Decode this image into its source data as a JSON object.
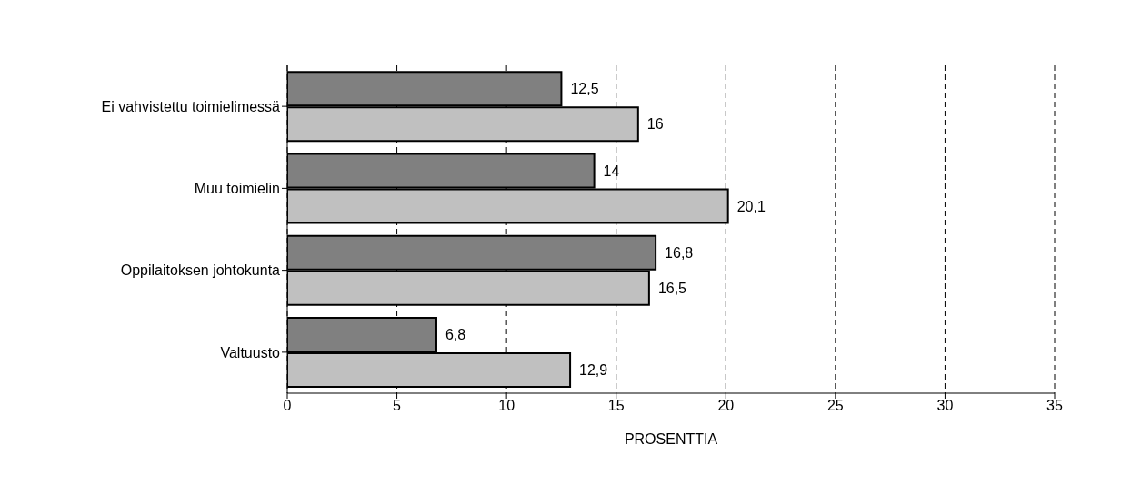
{
  "chart_data": {
    "type": "bar",
    "orientation": "horizontal",
    "xlabel": "PROSENTTIA",
    "categories": [
      "Ei vahvistettu toimielimessä",
      "Muu toimielin",
      "Oppilaitoksen johtokunta",
      "Valtuusto"
    ],
    "series": [
      {
        "color": "#808080",
        "values": [
          12.5,
          14,
          16.8,
          6.8
        ],
        "value_labels": [
          "12,5",
          "14",
          "16,8",
          "6,8"
        ]
      },
      {
        "color": "#c0c0c0",
        "values": [
          16,
          20.1,
          16.5,
          12.9
        ],
        "value_labels": [
          "16",
          "20,1",
          "16,5",
          "12,9"
        ]
      }
    ],
    "xlim": [
      0,
      35
    ],
    "xticks": [
      0,
      5,
      10,
      15,
      20,
      25,
      30,
      35
    ],
    "grid": "x",
    "legend": false
  }
}
